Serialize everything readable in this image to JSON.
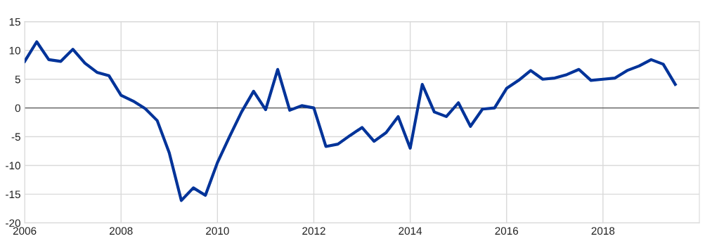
{
  "chart_data": {
    "type": "line",
    "x": [
      2006.0,
      2006.25,
      2006.5,
      2006.75,
      2007.0,
      2007.25,
      2007.5,
      2007.75,
      2008.0,
      2008.25,
      2008.5,
      2008.75,
      2009.0,
      2009.25,
      2009.5,
      2009.75,
      2010.0,
      2010.25,
      2010.5,
      2010.75,
      2011.0,
      2011.25,
      2011.5,
      2011.75,
      2012.0,
      2012.25,
      2012.5,
      2012.75,
      2013.0,
      2013.25,
      2013.5,
      2013.75,
      2014.0,
      2014.25,
      2014.5,
      2014.75,
      2015.0,
      2015.25,
      2015.5,
      2015.75,
      2016.0,
      2016.25,
      2016.5,
      2016.75,
      2017.0,
      2017.25,
      2017.5,
      2017.75,
      2018.0,
      2018.25,
      2018.5,
      2018.75,
      2019.0,
      2019.25,
      2019.5
    ],
    "series": [
      {
        "color": "#003399",
        "values": [
          8.1,
          11.5,
          8.4,
          8.1,
          10.2,
          7.8,
          6.2,
          5.6,
          2.2,
          1.2,
          -0.1,
          -2.2,
          -7.8,
          -16.1,
          -13.9,
          -15.2,
          -9.5,
          -5.0,
          -0.7,
          2.9,
          -0.3,
          6.7,
          -0.4,
          0.4,
          0.0,
          -6.7,
          -6.3,
          -4.8,
          -3.4,
          -5.8,
          -4.3,
          -1.5,
          -7.0,
          4.1,
          -0.7,
          -1.5,
          0.9,
          -3.2,
          -0.2,
          0.0,
          3.4,
          4.8,
          6.5,
          5.0,
          5.2,
          5.8,
          6.7,
          4.8,
          5.0,
          5.2,
          6.5,
          7.3,
          8.4,
          7.6,
          4.1
        ]
      }
    ],
    "xlim": [
      2006,
      2020
    ],
    "xticks": [
      2006,
      2008,
      2010,
      2012,
      2014,
      2016,
      2018
    ],
    "ylim": [
      -20,
      15
    ],
    "yticks": [
      -20,
      -15,
      -10,
      -5,
      0,
      5,
      10,
      15
    ],
    "ref_lines": [
      {
        "axis": "y",
        "value": 0,
        "color": "#555555"
      }
    ],
    "grid": true,
    "legend": false,
    "marker": "none",
    "line_style": "solid"
  }
}
